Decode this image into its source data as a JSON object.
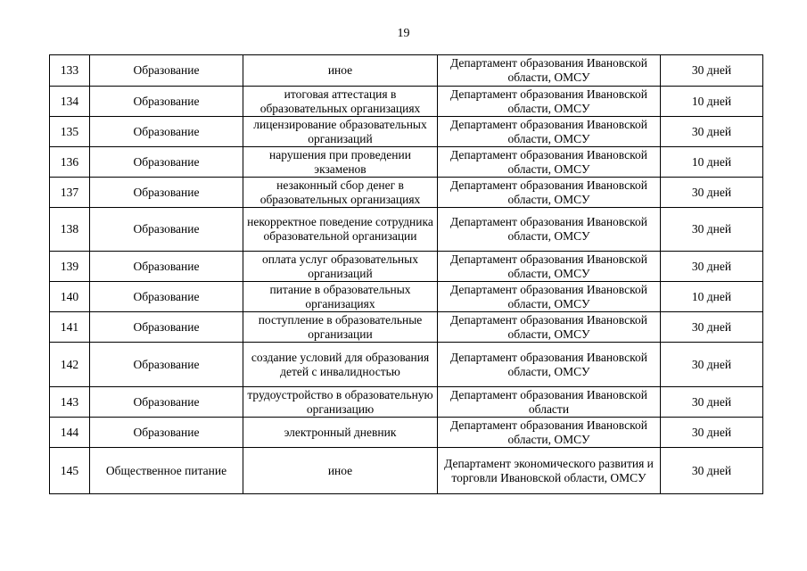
{
  "page_number": "19",
  "rows": [
    {
      "num": "133",
      "area": "Образование",
      "topic": "иное",
      "dept": "Департамент образования Ивановской области, ОМСУ",
      "term": "30 дней"
    },
    {
      "num": "134",
      "area": "Образование",
      "topic": "итоговая аттестация в образовательных организациях",
      "dept": "Департамент образования Ивановской области, ОМСУ",
      "term": "10 дней"
    },
    {
      "num": "135",
      "area": "Образование",
      "topic": "лицензирование образовательных организаций",
      "dept": "Департамент образования Ивановской области, ОМСУ",
      "term": "30 дней"
    },
    {
      "num": "136",
      "area": "Образование",
      "topic": "нарушения при проведении экзаменов",
      "dept": "Департамент образования Ивановской области, ОМСУ",
      "term": "10 дней"
    },
    {
      "num": "137",
      "area": "Образование",
      "topic": "незаконный сбор денег в образовательных организациях",
      "dept": "Департамент образования Ивановской области, ОМСУ",
      "term": "30 дней"
    },
    {
      "num": "138",
      "area": "Образование",
      "topic": "некорректное поведение сотрудника образовательной организации",
      "dept": "Департамент образования Ивановской области, ОМСУ",
      "term": "30 дней"
    },
    {
      "num": "139",
      "area": "Образование",
      "topic": "оплата услуг образовательных организаций",
      "dept": "Департамент образования Ивановской области, ОМСУ",
      "term": "30 дней"
    },
    {
      "num": "140",
      "area": "Образование",
      "topic": "питание в образовательных организациях",
      "dept": "Департамент образования Ивановской области, ОМСУ",
      "term": "10 дней"
    },
    {
      "num": "141",
      "area": "Образование",
      "topic": "поступление в образовательные организации",
      "dept": "Департамент образования Ивановской области, ОМСУ",
      "term": "30 дней"
    },
    {
      "num": "142",
      "area": "Образование",
      "topic": "создание условий для образования детей с инвалидностью",
      "dept": "Департамент образования Ивановской области, ОМСУ",
      "term": "30 дней"
    },
    {
      "num": "143",
      "area": "Образование",
      "topic": "трудоустройство в образовательную организацию",
      "dept": "Департамент образования Ивановской области",
      "term": "30 дней"
    },
    {
      "num": "144",
      "area": "Образование",
      "topic": "электронный дневник",
      "dept": "Департамент образования Ивановской области, ОМСУ",
      "term": "30 дней"
    },
    {
      "num": "145",
      "area": "Общественное питание",
      "topic": "иное",
      "dept": "Департамент экономического развития и торговли Ивановской области, ОМСУ",
      "term": "30 дней"
    }
  ]
}
